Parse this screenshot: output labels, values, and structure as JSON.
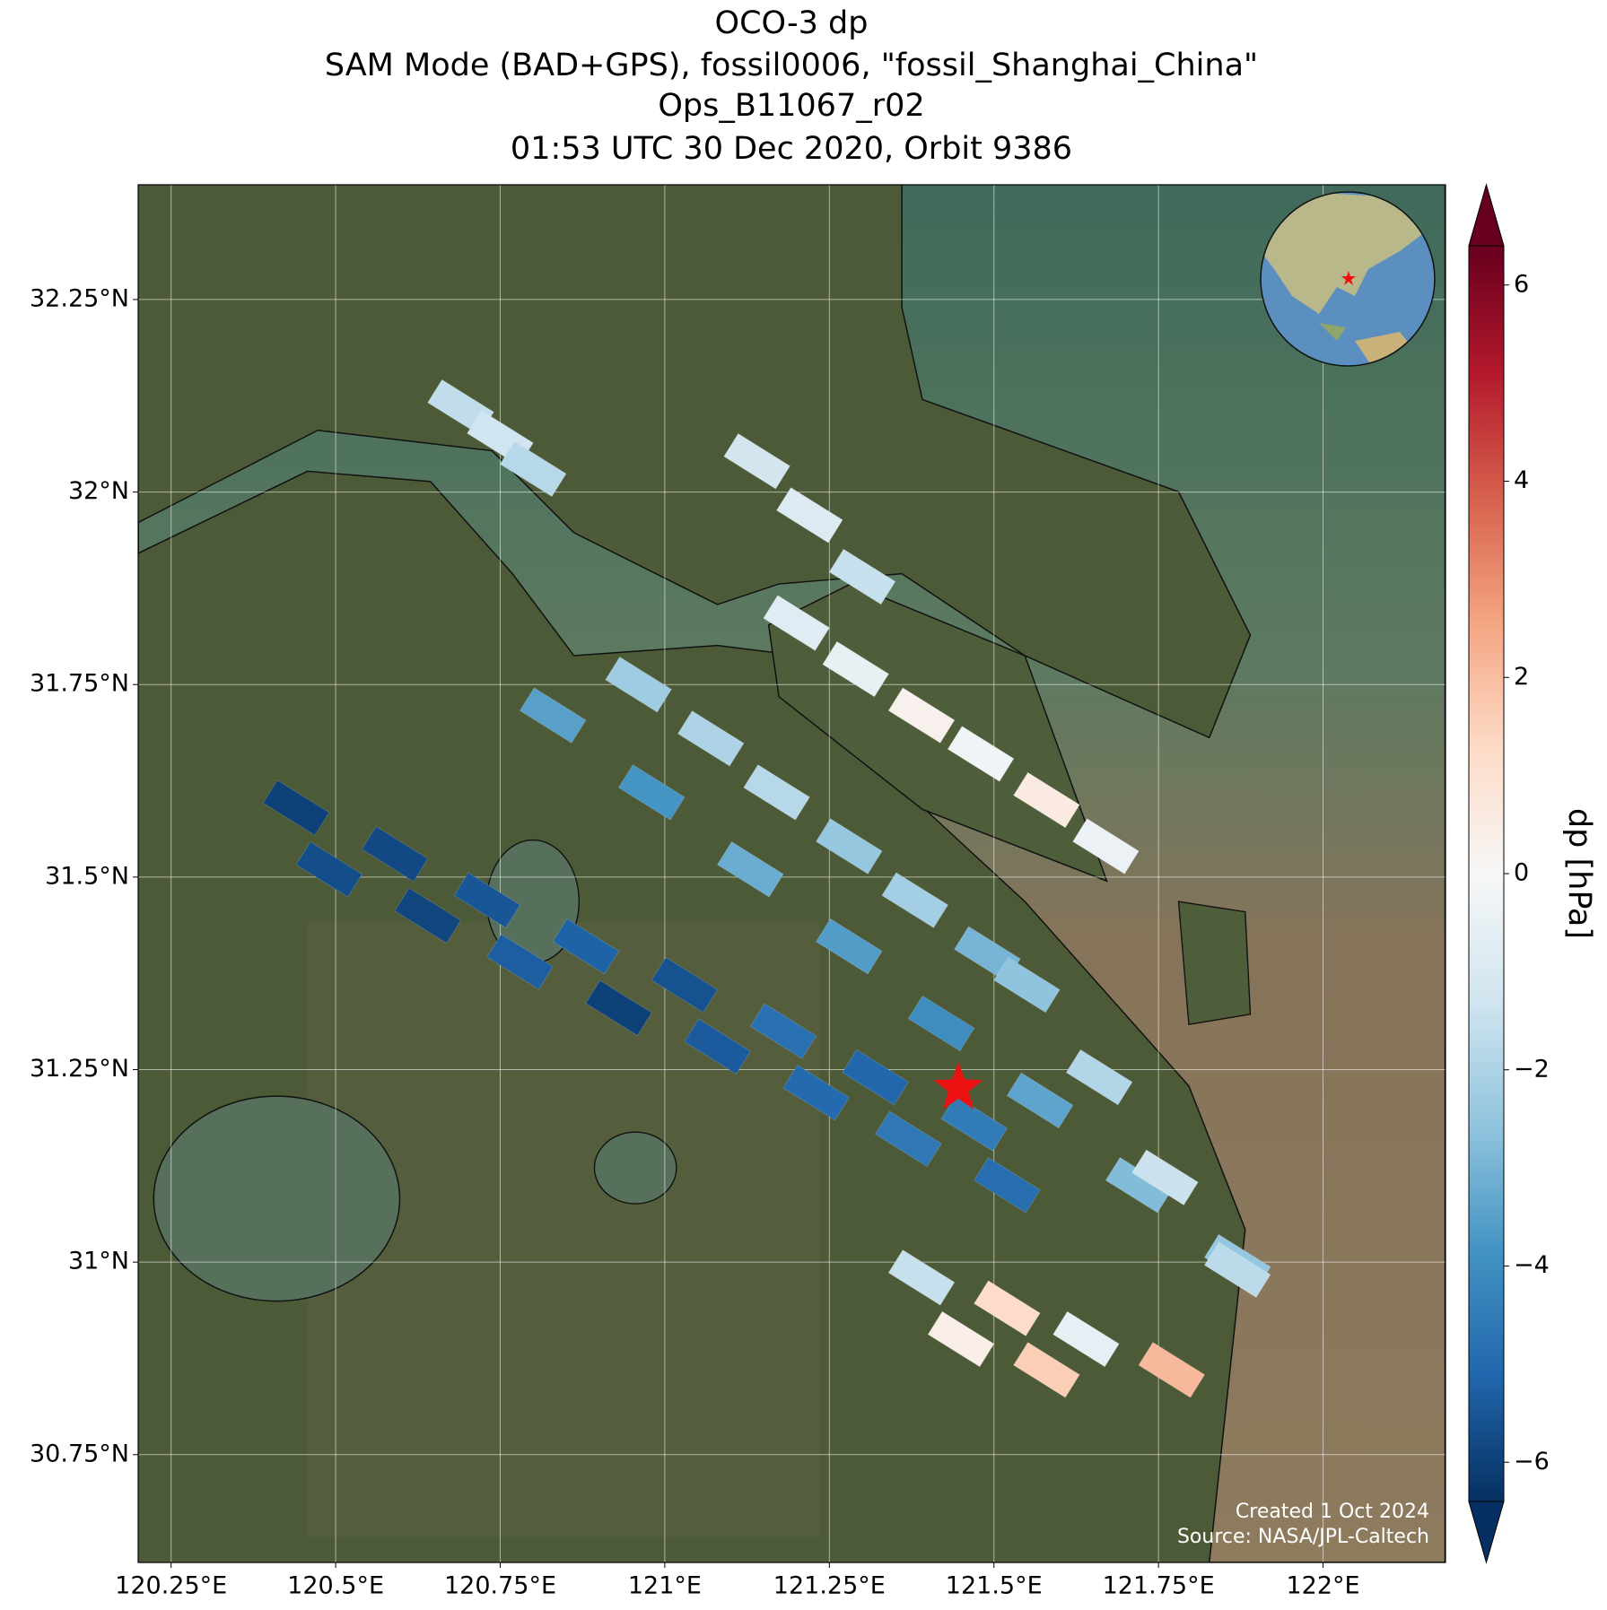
{
  "chart_data": {
    "type": "map",
    "title_lines": [
      "OCO-3 dp",
      "SAM Mode (BAD+GPS), fossil0006, \"fossil_Shanghai_China\"",
      "Ops_B11067_r02",
      "01:53 UTC 30 Dec 2020, Orbit 9386"
    ],
    "colorbar_label": "dp [hPa]",
    "credits": [
      "Created 1 Oct 2024",
      "Source: NASA/JPL-Caltech"
    ],
    "xlim": [
      120.2,
      122.186
    ],
    "ylim": [
      30.61,
      32.399
    ],
    "xticks": [
      {
        "value": 120.25,
        "label": "120.25°E"
      },
      {
        "value": 120.5,
        "label": "120.5°E"
      },
      {
        "value": 120.75,
        "label": "120.75°E"
      },
      {
        "value": 121,
        "label": "121°E"
      },
      {
        "value": 121.25,
        "label": "121.25°E"
      },
      {
        "value": 121.5,
        "label": "121.5°E"
      },
      {
        "value": 121.75,
        "label": "121.75°E"
      },
      {
        "value": 122,
        "label": "122°E"
      }
    ],
    "yticks": [
      {
        "value": 30.75,
        "label": "30.75°N"
      },
      {
        "value": 31,
        "label": "31°N"
      },
      {
        "value": 31.25,
        "label": "31.25°N"
      },
      {
        "value": 31.5,
        "label": "31.5°N"
      },
      {
        "value": 31.75,
        "label": "31.75°N"
      },
      {
        "value": 32,
        "label": "32°N"
      },
      {
        "value": 32.25,
        "label": "32.25°N"
      }
    ],
    "grid": true,
    "clim": [
      -6.4,
      6.4
    ],
    "cticks": [
      {
        "value": -6,
        "label": "−6"
      },
      {
        "value": -4,
        "label": "−4"
      },
      {
        "value": -2,
        "label": "−2"
      },
      0,
      2,
      4,
      6
    ],
    "colormap": [
      "#053061",
      "#2166ac",
      "#4393c3",
      "#92c5de",
      "#d1e5f0",
      "#f7f7f7",
      "#fddbc7",
      "#f4a582",
      "#d6604d",
      "#b2182b",
      "#67001f"
    ],
    "target_lon": 121.446,
    "target_lat": 31.226,
    "target_color": "#ee1111",
    "lon": [
      120.44,
      120.59,
      120.73,
      120.88,
      121.03,
      121.18,
      121.32,
      121.47,
      120.49,
      120.64,
      120.78,
      120.93,
      121.08,
      121.23,
      121.37,
      121.52,
      120.83,
      120.98,
      121.13,
      121.28,
      121.42,
      121.57,
      121.72,
      121.87,
      120.96,
      121.07,
      121.17,
      121.28,
      121.38,
      121.49,
      121.2,
      121.29,
      121.39,
      121.48,
      121.58,
      121.67,
      121.14,
      121.22,
      121.3,
      120.69,
      120.75,
      120.8,
      121.39,
      121.52,
      121.64,
      121.77,
      121.45,
      121.58,
      121.55,
      121.66,
      121.76,
      121.87
    ],
    "lat": [
      31.59,
      31.53,
      31.47,
      31.41,
      31.36,
      31.3,
      31.24,
      31.18,
      31.51,
      31.45,
      31.39,
      31.33,
      31.28,
      31.22,
      31.16,
      31.1,
      31.71,
      31.61,
      31.51,
      31.41,
      31.31,
      31.21,
      31.1,
      31.0,
      31.75,
      31.68,
      31.61,
      31.54,
      31.47,
      31.4,
      31.83,
      31.77,
      31.71,
      31.66,
      31.6,
      31.54,
      32.04,
      31.97,
      31.89,
      32.11,
      32.07,
      32.03,
      30.98,
      30.94,
      30.9,
      30.86,
      30.9,
      30.86,
      31.36,
      31.24,
      31.11,
      30.99
    ],
    "values": [
      -6,
      -5.8,
      -5.5,
      -5.2,
      -5.6,
      -4.8,
      -5.1,
      -4.5,
      -5.7,
      -5.9,
      -5.3,
      -6,
      -5.4,
      -5,
      -4.6,
      -4.9,
      -3.5,
      -3.8,
      -3.2,
      -3.6,
      -4,
      -3.4,
      -2.8,
      -2.5,
      -2.3,
      -2,
      -1.8,
      -2.5,
      -2.2,
      -3,
      -0.8,
      -0.5,
      0.3,
      -0.2,
      0.6,
      -0.4,
      -1.2,
      -0.9,
      -1.5,
      -1.6,
      -1.3,
      -1.8,
      -1.5,
      1.2,
      -0.6,
      2.1,
      0.4,
      1.6,
      -2.6,
      -1.9,
      -1.4,
      -1.7
    ]
  }
}
